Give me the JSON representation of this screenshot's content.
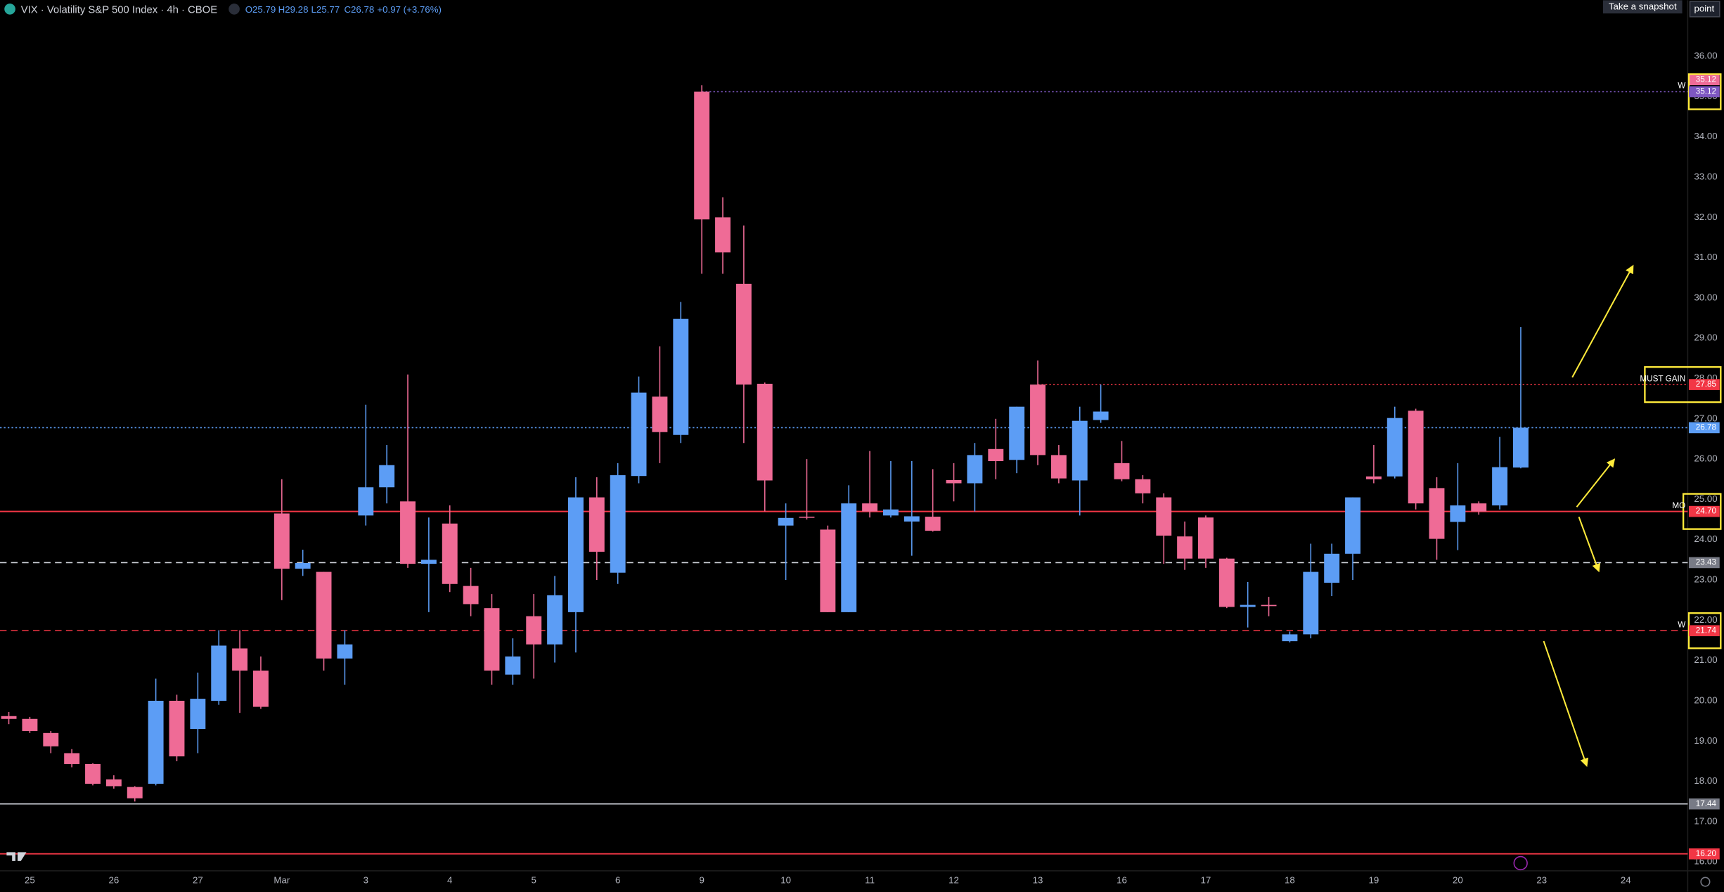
{
  "header": {
    "symbol": "VIX · Volatility S&P 500 Index · 4h · CBOE",
    "open": "O25.79",
    "high": "H29.28",
    "low": "L25.77",
    "close": "C26.78",
    "change": "+0.97 (+3.76%)",
    "snapshot_button": "Take a snapshot",
    "point_button": "point"
  },
  "chart_data": {
    "type": "candlestick",
    "up_color": "#5c9df5",
    "down_color": "#ef6b96",
    "xlim": [
      -0.42,
      79.95
    ],
    "xticks": [
      {
        "value": 1,
        "label": "25"
      },
      {
        "value": 5,
        "label": "26"
      },
      {
        "value": 9,
        "label": "27"
      },
      {
        "value": 13,
        "label": "Mar"
      },
      {
        "value": 17,
        "label": "3"
      },
      {
        "value": 21,
        "label": "4"
      },
      {
        "value": 25,
        "label": "5"
      },
      {
        "value": 29,
        "label": "6"
      },
      {
        "value": 33,
        "label": "9"
      },
      {
        "value": 37,
        "label": "10"
      },
      {
        "value": 41,
        "label": "11"
      },
      {
        "value": 45,
        "label": "12"
      },
      {
        "value": 49,
        "label": "13"
      },
      {
        "value": 53,
        "label": "16"
      },
      {
        "value": 57,
        "label": "17"
      },
      {
        "value": 61,
        "label": "18"
      },
      {
        "value": 65,
        "label": "19"
      },
      {
        "value": 69,
        "label": "20"
      },
      {
        "value": 73,
        "label": "23"
      },
      {
        "value": 77,
        "label": "24"
      }
    ],
    "ylim": [
      15.26,
      37.39
    ],
    "yticks": [
      {
        "value": 16,
        "label": "16.00"
      },
      {
        "value": 17,
        "label": "17.00"
      },
      {
        "value": 18,
        "label": "18.00"
      },
      {
        "value": 19,
        "label": "19.00"
      },
      {
        "value": 20,
        "label": "20.00"
      },
      {
        "value": 21,
        "label": "21.00"
      },
      {
        "value": 22,
        "label": "22.00"
      },
      {
        "value": 23,
        "label": "23.00"
      },
      {
        "value": 24,
        "label": "24.00"
      },
      {
        "value": 25,
        "label": "25.00"
      },
      {
        "value": 26,
        "label": "26.00"
      },
      {
        "value": 27,
        "label": "27.00"
      },
      {
        "value": 28,
        "label": "28.00"
      },
      {
        "value": 29,
        "label": "29.00"
      },
      {
        "value": 30,
        "label": "30.00"
      },
      {
        "value": 31,
        "label": "31.00"
      },
      {
        "value": 32,
        "label": "32.00"
      },
      {
        "value": 33,
        "label": "33.00"
      },
      {
        "value": 34,
        "label": "34.00"
      },
      {
        "value": 35,
        "label": "35.00"
      },
      {
        "value": 36,
        "label": "36.00"
      }
    ],
    "open": [
      19.62,
      19.55,
      19.2,
      18.7,
      18.43,
      18.05,
      17.86,
      17.94,
      20.0,
      19.3,
      20.0,
      21.3,
      20.75,
      24.65,
      23.28,
      23.2,
      21.05,
      24.6,
      25.3,
      24.95,
      23.4,
      24.4,
      22.85,
      22.3,
      20.65,
      22.1,
      21.4,
      22.2,
      25.05,
      23.18,
      25.58,
      27.55,
      26.6,
      35.12,
      32.0,
      30.35,
      27.87,
      24.35,
      24.57,
      24.25,
      22.2,
      24.9,
      24.6,
      24.45,
      24.57,
      25.48,
      25.4,
      26.25,
      25.98,
      27.85,
      26.1,
      25.47,
      26.97,
      25.9,
      25.5,
      25.05,
      24.08,
      24.55,
      23.53,
      22.33,
      22.38,
      21.48,
      21.65,
      22.93,
      23.65,
      25.57,
      25.57,
      27.2,
      25.28,
      24.44,
      24.9,
      24.85,
      25.79
    ],
    "high": [
      19.72,
      19.6,
      19.25,
      18.8,
      18.45,
      18.15,
      17.88,
      20.55,
      20.15,
      20.7,
      21.75,
      21.75,
      21.1,
      25.5,
      23.75,
      23.2,
      21.75,
      27.35,
      26.35,
      28.1,
      24.55,
      24.85,
      23.3,
      22.65,
      21.55,
      22.65,
      23.1,
      25.55,
      25.55,
      25.9,
      28.05,
      28.8,
      29.9,
      35.28,
      32.5,
      31.8,
      27.9,
      24.9,
      26.0,
      24.35,
      25.35,
      26.2,
      25.95,
      25.95,
      25.75,
      25.9,
      26.4,
      27.0,
      27.3,
      28.45,
      26.35,
      27.3,
      27.85,
      26.45,
      25.6,
      25.15,
      24.45,
      24.6,
      23.55,
      22.95,
      22.58,
      21.72,
      23.9,
      23.9,
      25.05,
      26.35,
      27.3,
      27.25,
      25.55,
      25.9,
      24.95,
      26.55,
      29.28
    ],
    "low": [
      19.42,
      19.2,
      18.7,
      18.35,
      17.9,
      17.82,
      17.5,
      17.9,
      18.5,
      18.7,
      19.9,
      19.7,
      19.8,
      22.5,
      23.1,
      20.75,
      20.4,
      24.35,
      24.9,
      23.3,
      22.2,
      22.7,
      22.1,
      20.4,
      20.4,
      20.55,
      20.95,
      21.2,
      23.0,
      22.9,
      25.4,
      25.9,
      26.4,
      30.6,
      30.6,
      26.4,
      24.7,
      23.0,
      24.5,
      22.2,
      22.2,
      24.55,
      24.55,
      23.6,
      24.2,
      24.95,
      24.7,
      25.5,
      25.65,
      25.85,
      25.4,
      24.6,
      26.9,
      25.45,
      24.9,
      23.4,
      23.25,
      23.3,
      22.3,
      21.82,
      22.1,
      21.45,
      21.55,
      22.6,
      23.0,
      25.4,
      25.52,
      24.75,
      23.5,
      23.74,
      24.62,
      24.75,
      25.77
    ],
    "close": [
      19.55,
      19.25,
      18.87,
      18.43,
      17.94,
      17.88,
      17.58,
      20.0,
      18.62,
      20.05,
      21.37,
      20.75,
      19.85,
      23.28,
      23.42,
      21.05,
      21.4,
      25.3,
      25.85,
      23.4,
      23.5,
      22.9,
      22.4,
      20.75,
      21.1,
      21.4,
      22.62,
      25.05,
      23.7,
      25.6,
      27.65,
      26.67,
      29.48,
      31.95,
      31.13,
      27.85,
      25.47,
      24.54,
      24.55,
      22.2,
      24.9,
      24.7,
      24.75,
      24.58,
      24.22,
      25.4,
      26.1,
      25.95,
      27.3,
      26.1,
      25.52,
      26.95,
      27.18,
      25.5,
      25.15,
      24.1,
      23.53,
      23.53,
      22.33,
      22.38,
      22.35,
      21.65,
      23.2,
      23.65,
      25.05,
      25.5,
      27.02,
      24.9,
      24.02,
      24.85,
      24.7,
      25.8,
      26.78
    ],
    "levels": [
      {
        "value": 35.12,
        "label": "35.12",
        "color": "#ef6b96",
        "style": "none"
      },
      {
        "value": 35.12,
        "label": "35.12",
        "color": "#7e57c2",
        "style": "dotted",
        "tag": "W"
      },
      {
        "value": 27.85,
        "label": "27.85",
        "color": "#f23645",
        "style": "dotted",
        "tag": "MUST GAIN"
      },
      {
        "value": 26.78,
        "label": "26.78",
        "color": "#5c9df5",
        "style": "dotted"
      },
      {
        "value": 24.7,
        "label": "24.70",
        "color": "#f23645",
        "style": "solid",
        "tag": "MO"
      },
      {
        "value": 23.43,
        "label": "23.43",
        "color": "#787b86",
        "style": "dashed-white"
      },
      {
        "value": 21.74,
        "label": "21.74",
        "color": "#f23645",
        "style": "dashed",
        "tag": "W"
      },
      {
        "value": 17.44,
        "label": "17.44",
        "color": "#787b86",
        "style": "solid-white"
      },
      {
        "value": 16.2,
        "label": "16.20",
        "color": "#f23645",
        "style": "solid"
      }
    ]
  }
}
